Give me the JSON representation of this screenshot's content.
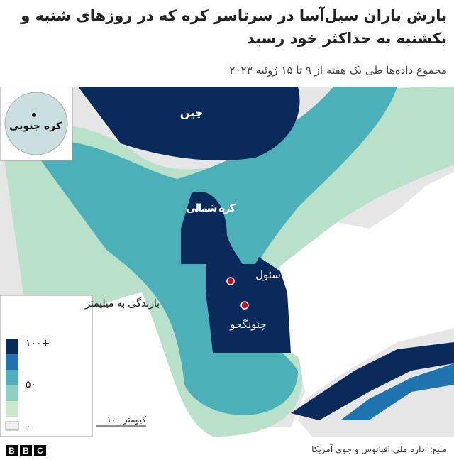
{
  "header": {
    "title": "بارش باران سیل‌آسا در سرتاسر کره که در روزهای شنبه و یکشنبه به حداکثر خود رسید",
    "subtitle": "مجموع داده‌ها طی یک هفته از ۹ تا ۱۵ ژوئیه ۲۰۲۳"
  },
  "map": {
    "inset_label": "کره جنوبی",
    "labels": {
      "china": "چین",
      "north_korea": "کره شمالی",
      "seoul": "سئول",
      "cheongju": "چئونگجو"
    },
    "scale": "۱۰۰ کیومتر"
  },
  "legend": {
    "title": "بارندگی به میلیمتر",
    "ticks": [
      "۱۰۰+",
      "۵۰",
      "۰"
    ]
  },
  "footer": {
    "source": "منبع: اداره ملی اقیانوس و جوی آمریکا",
    "logo": [
      "B",
      "B",
      "C"
    ]
  }
}
